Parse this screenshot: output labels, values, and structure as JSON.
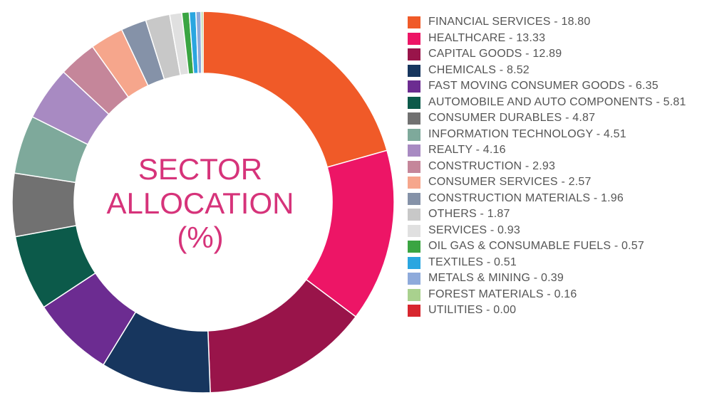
{
  "chart_data": {
    "type": "pie",
    "title": "SECTOR ALLOCATION (%)",
    "title_lines": [
      "SECTOR",
      "ALLOCATION",
      "(%)"
    ],
    "legend_position": "right",
    "slices": [
      {
        "label": "FINANCIAL SERVICES - 18.80",
        "value": 18.8,
        "color": "#f05a28"
      },
      {
        "label": "HEALTHCARE - 13.33",
        "value": 13.33,
        "color": "#ed1566"
      },
      {
        "label": "CAPITAL GOODS - 12.89",
        "value": 12.89,
        "color": "#99144a"
      },
      {
        "label": "CHEMICALS - 8.52",
        "value": 8.52,
        "color": "#17365e"
      },
      {
        "label": "FAST MOVING CONSUMER GOODS - 6.35",
        "value": 6.35,
        "color": "#6c2c91"
      },
      {
        "label": "AUTOMOBILE AND AUTO COMPONENTS - 5.81",
        "value": 5.81,
        "color": "#0c5a4a"
      },
      {
        "label": "CONSUMER DURABLES - 4.87",
        "value": 4.87,
        "color": "#717171"
      },
      {
        "label": "INFORMATION TECHNOLOGY - 4.51",
        "value": 4.51,
        "color": "#7ea99b"
      },
      {
        "label": "REALTY - 4.16",
        "value": 4.16,
        "color": "#a88ac2"
      },
      {
        "label": "CONSTRUCTION - 2.93",
        "value": 2.93,
        "color": "#c5869a"
      },
      {
        "label": "CONSUMER SERVICES - 2.57",
        "value": 2.57,
        "color": "#f6a68c"
      },
      {
        "label": "CONSTRUCTION MATERIALS - 1.96",
        "value": 1.96,
        "color": "#8592a8"
      },
      {
        "label": "OTHERS - 1.87",
        "value": 1.87,
        "color": "#c8c8c8"
      },
      {
        "label": "SERVICES - 0.93",
        "value": 0.93,
        "color": "#e0e0e0"
      },
      {
        "label": "OIL GAS & CONSUMABLE FUELS - 0.57",
        "value": 0.57,
        "color": "#3aa542"
      },
      {
        "label": "TEXTILES - 0.51",
        "value": 0.51,
        "color": "#2aa6e0"
      },
      {
        "label": "METALS & MINING - 0.39",
        "value": 0.39,
        "color": "#8eaadb"
      },
      {
        "label": "FOREST MATERIALS - 0.16",
        "value": 0.16,
        "color": "#a9d18e"
      },
      {
        "label": "UTILITIES - 0.00",
        "value": 0.0,
        "color": "#d7262e"
      }
    ]
  }
}
